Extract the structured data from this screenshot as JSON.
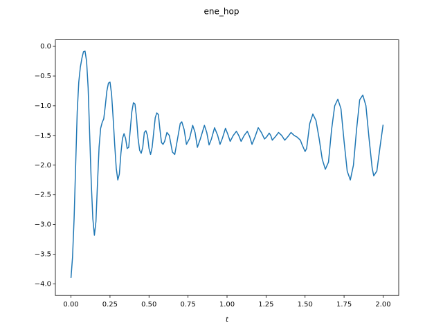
{
  "chart_data": {
    "type": "line",
    "title": "ene_hop",
    "x_label": "t",
    "x": [
      0.0,
      0.01,
      0.02,
      0.03,
      0.04,
      0.05,
      0.06,
      0.07,
      0.08,
      0.09,
      0.1,
      0.11,
      0.12,
      0.13,
      0.14,
      0.15,
      0.16,
      0.17,
      0.18,
      0.19,
      0.2,
      0.21,
      0.22,
      0.23,
      0.24,
      0.25,
      0.26,
      0.27,
      0.28,
      0.29,
      0.3,
      0.31,
      0.32,
      0.33,
      0.34,
      0.35,
      0.36,
      0.37,
      0.38,
      0.39,
      0.4,
      0.41,
      0.42,
      0.43,
      0.44,
      0.45,
      0.46,
      0.47,
      0.48,
      0.49,
      0.5,
      0.51,
      0.52,
      0.53,
      0.54,
      0.55,
      0.56,
      0.57,
      0.58,
      0.59,
      0.6,
      0.615,
      0.63,
      0.65,
      0.665,
      0.68,
      0.7,
      0.71,
      0.725,
      0.74,
      0.76,
      0.78,
      0.795,
      0.81,
      0.83,
      0.855,
      0.87,
      0.885,
      0.9,
      0.92,
      0.94,
      0.955,
      0.97,
      0.99,
      1.005,
      1.02,
      1.04,
      1.06,
      1.075,
      1.09,
      1.11,
      1.13,
      1.145,
      1.16,
      1.18,
      1.2,
      1.22,
      1.24,
      1.255,
      1.27,
      1.28,
      1.29,
      1.31,
      1.33,
      1.35,
      1.37,
      1.39,
      1.41,
      1.43,
      1.45,
      1.47,
      1.48,
      1.5,
      1.51,
      1.53,
      1.55,
      1.57,
      1.59,
      1.61,
      1.63,
      1.65,
      1.67,
      1.69,
      1.71,
      1.73,
      1.75,
      1.77,
      1.79,
      1.81,
      1.83,
      1.85,
      1.87,
      1.89,
      1.91,
      1.93,
      1.94,
      1.96,
      1.98,
      2.0
    ],
    "series": [
      {
        "color": "#1f77b4",
        "values": [
          -3.9,
          -3.55,
          -2.9,
          -2.0,
          -1.1,
          -0.6,
          -0.35,
          -0.2,
          -0.09,
          -0.08,
          -0.25,
          -0.7,
          -1.5,
          -2.3,
          -2.9,
          -3.18,
          -2.95,
          -2.3,
          -1.7,
          -1.38,
          -1.28,
          -1.22,
          -1.0,
          -0.75,
          -0.62,
          -0.6,
          -0.8,
          -1.2,
          -1.65,
          -2.05,
          -2.25,
          -2.15,
          -1.8,
          -1.55,
          -1.47,
          -1.55,
          -1.72,
          -1.7,
          -1.4,
          -1.1,
          -0.95,
          -0.97,
          -1.2,
          -1.55,
          -1.75,
          -1.8,
          -1.7,
          -1.45,
          -1.42,
          -1.5,
          -1.72,
          -1.82,
          -1.7,
          -1.45,
          -1.2,
          -1.12,
          -1.15,
          -1.4,
          -1.62,
          -1.65,
          -1.6,
          -1.45,
          -1.5,
          -1.78,
          -1.82,
          -1.6,
          -1.3,
          -1.27,
          -1.4,
          -1.65,
          -1.55,
          -1.33,
          -1.45,
          -1.7,
          -1.55,
          -1.33,
          -1.45,
          -1.66,
          -1.56,
          -1.37,
          -1.5,
          -1.65,
          -1.55,
          -1.38,
          -1.48,
          -1.6,
          -1.5,
          -1.43,
          -1.5,
          -1.6,
          -1.5,
          -1.43,
          -1.52,
          -1.65,
          -1.52,
          -1.37,
          -1.45,
          -1.56,
          -1.52,
          -1.46,
          -1.5,
          -1.58,
          -1.52,
          -1.45,
          -1.5,
          -1.58,
          -1.52,
          -1.45,
          -1.5,
          -1.53,
          -1.58,
          -1.65,
          -1.77,
          -1.72,
          -1.3,
          -1.14,
          -1.25,
          -1.55,
          -1.9,
          -2.07,
          -1.95,
          -1.4,
          -1.0,
          -0.89,
          -1.05,
          -1.6,
          -2.1,
          -2.25,
          -2.0,
          -1.4,
          -0.9,
          -0.82,
          -1.0,
          -1.55,
          -2.05,
          -2.18,
          -2.1,
          -1.7,
          -1.32
        ]
      }
    ],
    "xlim": [
      -0.1,
      2.1
    ],
    "ylim": [
      -4.195,
      0.11
    ],
    "xticks": [
      {
        "value": 0,
        "label": "0.00"
      },
      {
        "value": 0.25,
        "label": "0.25"
      },
      {
        "value": 0.5,
        "label": "0.50"
      },
      {
        "value": 0.75,
        "label": "0.75"
      },
      {
        "value": 1,
        "label": "1.00"
      },
      {
        "value": 1.25,
        "label": "1.25"
      },
      {
        "value": 1.5,
        "label": "1.50"
      },
      {
        "value": 1.75,
        "label": "1.75"
      },
      {
        "value": 2,
        "label": "2.00"
      }
    ],
    "yticks": [
      {
        "value": 0,
        "label": "0.0"
      },
      {
        "value": -0.5,
        "label": "−0.5"
      },
      {
        "value": -1,
        "label": "−1.0"
      },
      {
        "value": -1.5,
        "label": "−1.5"
      },
      {
        "value": -2,
        "label": "−2.0"
      },
      {
        "value": -2.5,
        "label": "−2.5"
      },
      {
        "value": -3,
        "label": "−3.0"
      },
      {
        "value": -3.5,
        "label": "−3.5"
      },
      {
        "value": -4,
        "label": "−4.0"
      }
    ],
    "grid": false
  }
}
